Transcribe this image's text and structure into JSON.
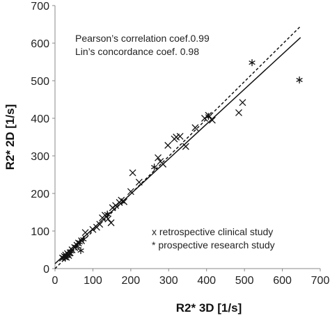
{
  "chart_data": {
    "type": "scatter",
    "xlabel": "R2* 3D [1/s]",
    "ylabel": "R2* 2D [1/s]",
    "xlim": [
      0,
      700
    ],
    "ylim": [
      0,
      700
    ],
    "xticks": [
      "0",
      "100",
      "200",
      "300",
      "400",
      "500",
      "600",
      "700"
    ],
    "yticks": [
      "0",
      "100",
      "200",
      "300",
      "400",
      "500",
      "600",
      "700"
    ],
    "grid": false,
    "annotations": {
      "pearson": "Pearson’s correlation coef.0.99",
      "lin": "Lin’s concordance coef. 0.98"
    },
    "legend": {
      "retrospective": "x retrospective clinical study",
      "prospective": "* prospective research study"
    },
    "lines": [
      {
        "style": "dashed",
        "points": [
          [
            0,
            0
          ],
          [
            648,
            645
          ]
        ]
      },
      {
        "style": "solid",
        "points": [
          [
            0,
            13
          ],
          [
            648,
            615
          ]
        ]
      }
    ],
    "series": [
      {
        "marker": "x",
        "points": [
          [
            20,
            28
          ],
          [
            25,
            32
          ],
          [
            28,
            36
          ],
          [
            30,
            30
          ],
          [
            33,
            40
          ],
          [
            36,
            35
          ],
          [
            40,
            42
          ],
          [
            45,
            50
          ],
          [
            52,
            56
          ],
          [
            58,
            62
          ],
          [
            62,
            68
          ],
          [
            70,
            74
          ],
          [
            80,
            96
          ],
          [
            100,
            104
          ],
          [
            110,
            110
          ],
          [
            118,
            118
          ],
          [
            125,
            135
          ],
          [
            132,
            142
          ],
          [
            140,
            132
          ],
          [
            148,
            122
          ],
          [
            152,
            162
          ],
          [
            160,
            168
          ],
          [
            170,
            176
          ],
          [
            175,
            182
          ],
          [
            182,
            178
          ],
          [
            200,
            205
          ],
          [
            205,
            255
          ],
          [
            222,
            230
          ],
          [
            272,
            295
          ],
          [
            278,
            285
          ],
          [
            285,
            278
          ],
          [
            298,
            328
          ],
          [
            315,
            345
          ],
          [
            320,
            350
          ],
          [
            330,
            352
          ],
          [
            345,
            325
          ],
          [
            370,
            375
          ],
          [
            395,
            400
          ],
          [
            405,
            408
          ],
          [
            415,
            395
          ],
          [
            485,
            415
          ],
          [
            495,
            442
          ]
        ]
      },
      {
        "marker": "*",
        "points": [
          [
            22,
            30
          ],
          [
            27,
            28
          ],
          [
            32,
            34
          ],
          [
            38,
            38
          ],
          [
            42,
            46
          ],
          [
            55,
            58
          ],
          [
            65,
            70
          ],
          [
            68,
            48
          ],
          [
            75,
            78
          ],
          [
            138,
            145
          ],
          [
            262,
            270
          ],
          [
            405,
            405
          ],
          [
            520,
            548
          ],
          [
            645,
            502
          ]
        ]
      }
    ]
  }
}
